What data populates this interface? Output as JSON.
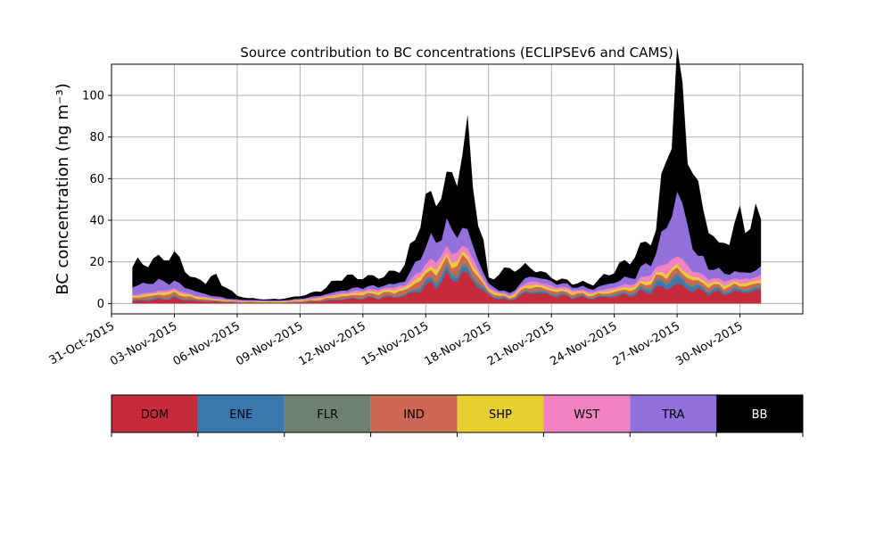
{
  "chart_data": {
    "type": "area",
    "stacked": true,
    "title": "Source contribution to BC concentrations (ECLIPSEv6 and CAMS)",
    "ylabel": "BC concentration (ng m⁻³)",
    "xlabel": "",
    "ylim": [
      -5,
      115
    ],
    "xlim": [
      "2015-10-31",
      "2015-12-03"
    ],
    "grid": true,
    "x_ticks": [
      "31-Oct-2015",
      "03-Nov-2015",
      "06-Nov-2015",
      "09-Nov-2015",
      "12-Nov-2015",
      "15-Nov-2015",
      "18-Nov-2015",
      "21-Nov-2015",
      "24-Nov-2015",
      "27-Nov-2015",
      "30-Nov-2015"
    ],
    "y_ticks": [
      0,
      20,
      40,
      60,
      80,
      100
    ],
    "legend_position": "bottom",
    "x": [
      "2015-11-01",
      "2015-11-02",
      "2015-11-03",
      "2015-11-04",
      "2015-11-05",
      "2015-11-06",
      "2015-11-07",
      "2015-11-08",
      "2015-11-09",
      "2015-11-10",
      "2015-11-11",
      "2015-11-12",
      "2015-11-13",
      "2015-11-14",
      "2015-11-15",
      "2015-11-16",
      "2015-11-17",
      "2015-11-18",
      "2015-11-19",
      "2015-11-20",
      "2015-11-21",
      "2015-11-22",
      "2015-11-23",
      "2015-11-24",
      "2015-11-25",
      "2015-11-26",
      "2015-11-27",
      "2015-11-28",
      "2015-11-29",
      "2015-11-30",
      "2015-12-01"
    ],
    "series": [
      {
        "name": "DOM",
        "color": "#c62b3b",
        "values": [
          1.2,
          1.8,
          2.5,
          1.2,
          0.8,
          0.4,
          0.3,
          0.2,
          0.5,
          1.0,
          2.0,
          2.5,
          2.8,
          3.5,
          8.0,
          12.0,
          14.0,
          3.5,
          1.5,
          5.5,
          4.0,
          3.0,
          2.5,
          3.5,
          4.5,
          7.0,
          9.0,
          6.0,
          5.0,
          5.5,
          6.0
        ]
      },
      {
        "name": "ENE",
        "color": "#3a78b0",
        "values": [
          0.3,
          0.4,
          0.5,
          0.3,
          0.2,
          0.1,
          0.1,
          0.1,
          0.1,
          0.2,
          0.3,
          0.3,
          0.4,
          0.5,
          1.5,
          2.0,
          2.0,
          0.6,
          0.3,
          0.8,
          0.6,
          0.5,
          0.4,
          0.6,
          0.8,
          2.0,
          3.0,
          1.5,
          1.0,
          1.0,
          1.0
        ]
      },
      {
        "name": "FLR",
        "color": "#6e8070",
        "values": [
          0.3,
          0.4,
          0.4,
          0.2,
          0.1,
          0.1,
          0.1,
          0.1,
          0.1,
          0.2,
          0.2,
          0.3,
          0.3,
          0.4,
          1.0,
          1.5,
          1.5,
          0.4,
          0.2,
          0.6,
          0.5,
          0.4,
          0.3,
          0.5,
          0.6,
          1.0,
          1.5,
          0.8,
          0.6,
          0.6,
          0.7
        ]
      },
      {
        "name": "IND",
        "color": "#cc6655",
        "values": [
          0.8,
          1.2,
          1.5,
          0.8,
          0.4,
          0.3,
          0.2,
          0.2,
          0.4,
          0.6,
          1.0,
          1.3,
          1.5,
          1.8,
          3.0,
          3.5,
          3.5,
          1.0,
          0.6,
          1.5,
          1.2,
          1.0,
          0.8,
          1.0,
          1.3,
          2.0,
          2.5,
          1.8,
          1.5,
          1.5,
          1.7
        ]
      },
      {
        "name": "SHP",
        "color": "#e6cf30",
        "values": [
          0.8,
          1.0,
          1.0,
          0.8,
          0.5,
          0.3,
          0.3,
          0.3,
          0.4,
          0.6,
          0.8,
          1.0,
          1.0,
          1.2,
          2.0,
          2.0,
          2.0,
          1.0,
          0.7,
          1.2,
          1.0,
          0.9,
          0.8,
          1.0,
          1.2,
          1.5,
          1.8,
          1.5,
          1.3,
          1.3,
          1.4
        ]
      },
      {
        "name": "WST",
        "color": "#f282c2",
        "values": [
          0.6,
          0.8,
          1.0,
          0.5,
          0.3,
          0.2,
          0.2,
          0.2,
          0.3,
          0.5,
          0.8,
          1.0,
          1.0,
          1.3,
          3.0,
          4.0,
          3.5,
          1.0,
          0.5,
          1.5,
          1.2,
          1.0,
          0.8,
          1.2,
          1.5,
          3.0,
          5.0,
          2.5,
          1.8,
          1.8,
          2.0
        ]
      },
      {
        "name": "TRA",
        "color": "#9370db",
        "values": [
          4.0,
          5.0,
          3.5,
          2.0,
          1.0,
          0.5,
          0.4,
          0.3,
          0.5,
          0.8,
          1.2,
          1.5,
          1.5,
          2.0,
          9.0,
          11.0,
          8.0,
          1.5,
          1.0,
          2.5,
          2.0,
          1.5,
          1.5,
          2.5,
          3.5,
          7.0,
          30.0,
          8.0,
          4.0,
          3.0,
          3.5
        ]
      },
      {
        "name": "BB",
        "color": "#000000",
        "values": [
          10.0,
          10.0,
          13.0,
          5.0,
          9.0,
          1.5,
          0.4,
          0.6,
          1.2,
          2.2,
          6.5,
          4.6,
          4.5,
          7.3,
          20.5,
          20.0,
          41.5,
          2.5,
          12.0,
          3.9,
          2.0,
          1.7,
          2.4,
          5.7,
          9.6,
          11.5,
          56.2,
          28.9,
          10.8,
          25.3,
          23.7
        ]
      }
    ]
  }
}
